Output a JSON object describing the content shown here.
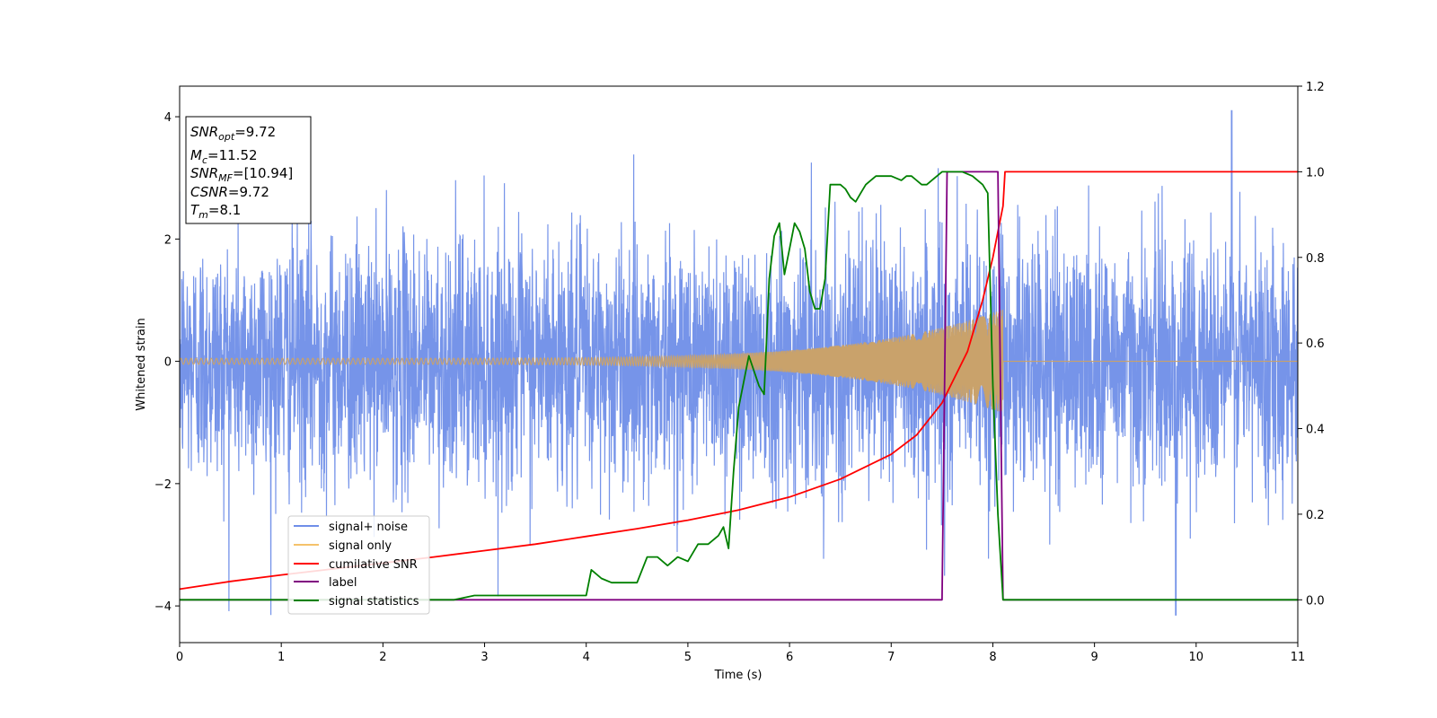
{
  "chart_data": {
    "type": "line",
    "xlabel": "Time (s)",
    "ylabel_left": "Whitened strain",
    "ylabel_right": "",
    "xlim": [
      0,
      11
    ],
    "ylim_left": [
      -4.6,
      4.5
    ],
    "ylim_right": [
      -0.1,
      1.2
    ],
    "x_ticks": [
      "0",
      "1",
      "2",
      "3",
      "4",
      "5",
      "6",
      "7",
      "8",
      "9",
      "10",
      "11"
    ],
    "y_ticks_left": [
      "−4",
      "−2",
      "0",
      "2",
      "4"
    ],
    "y_ticks_right": [
      "0.0",
      "0.2",
      "0.4",
      "0.6",
      "0.8",
      "1.0",
      "1.2"
    ],
    "info_box": {
      "snr_opt": {
        "sym": "SNR",
        "sub": "opt",
        "val": "=9.72"
      },
      "mc": {
        "sym": "M",
        "sub": "c",
        "val": "=11.52"
      },
      "snr_mf": {
        "sym": "SNR",
        "sub": "MF",
        "val": "=[10.94]"
      },
      "csnr": {
        "sym": "CSNR",
        "sub": "",
        "val": "=9.72"
      },
      "tm": {
        "sym": "T",
        "sub": "m",
        "val": "=8.1"
      }
    },
    "legend_position": "lower-left",
    "series": [
      {
        "name": "signal+ noise",
        "color": "#6f8ee8",
        "axis": "left",
        "summary": {
          "t_start": 0,
          "t_end": 11,
          "std": 1.0,
          "min": -4.15,
          "max": 4.1,
          "sample_rate_hz": 400
        }
      },
      {
        "name": "signal only",
        "color": "#f5c26b",
        "axis": "left",
        "summary": {
          "t_start": 0,
          "t_merge": 8.1,
          "t_end": 11,
          "amp_start": 0.05,
          "amp_merge": 0.85,
          "freq_start_hz": 20,
          "freq_merge_hz": 60
        }
      },
      {
        "name": "cumilative SNR",
        "color": "#ff0000",
        "axis": "right",
        "x": [
          0,
          0.5,
          1,
          1.5,
          2,
          2.5,
          3,
          3.5,
          4,
          4.5,
          5,
          5.5,
          6,
          6.5,
          7,
          7.25,
          7.5,
          7.75,
          7.9,
          8.0,
          8.05,
          8.1,
          8.12,
          9,
          10,
          11
        ],
        "y": [
          0.025,
          0.043,
          0.058,
          0.072,
          0.086,
          0.1,
          0.115,
          0.13,
          0.148,
          0.166,
          0.186,
          0.21,
          0.24,
          0.282,
          0.34,
          0.385,
          0.46,
          0.58,
          0.7,
          0.8,
          0.86,
          0.92,
          1.0,
          1.0,
          1.0,
          1.0
        ]
      },
      {
        "name": "label",
        "color": "#800080",
        "axis": "right",
        "x": [
          0,
          7.5,
          7.55,
          8.05,
          8.1,
          11
        ],
        "y": [
          0,
          0,
          1,
          1,
          0,
          0
        ]
      },
      {
        "name": "signal statistics",
        "color": "#008000",
        "axis": "right",
        "x": [
          0,
          0.5,
          1,
          1.5,
          2,
          2.5,
          2.7,
          2.9,
          3.1,
          3.3,
          3.5,
          3.7,
          3.9,
          4.0,
          4.05,
          4.15,
          4.25,
          4.35,
          4.5,
          4.6,
          4.7,
          4.8,
          4.9,
          5.0,
          5.1,
          5.2,
          5.3,
          5.35,
          5.4,
          5.45,
          5.5,
          5.6,
          5.7,
          5.75,
          5.8,
          5.85,
          5.9,
          5.95,
          6.0,
          6.05,
          6.1,
          6.15,
          6.2,
          6.25,
          6.3,
          6.35,
          6.4,
          6.5,
          6.55,
          6.6,
          6.65,
          6.7,
          6.75,
          6.8,
          6.85,
          6.9,
          7.0,
          7.1,
          7.15,
          7.2,
          7.3,
          7.35,
          7.4,
          7.45,
          7.5,
          7.55,
          7.6,
          7.7,
          7.8,
          7.9,
          7.95,
          8.0,
          8.05,
          8.1,
          8.15,
          9,
          10,
          11
        ],
        "y": [
          0,
          0,
          0,
          0,
          0,
          0,
          0.0,
          0.01,
          0.01,
          0.01,
          0.01,
          0.01,
          0.01,
          0.01,
          0.07,
          0.05,
          0.04,
          0.04,
          0.04,
          0.1,
          0.1,
          0.08,
          0.1,
          0.09,
          0.13,
          0.13,
          0.15,
          0.17,
          0.12,
          0.3,
          0.45,
          0.57,
          0.5,
          0.48,
          0.75,
          0.85,
          0.88,
          0.76,
          0.82,
          0.88,
          0.86,
          0.82,
          0.72,
          0.68,
          0.68,
          0.75,
          0.97,
          0.97,
          0.96,
          0.94,
          0.93,
          0.95,
          0.97,
          0.98,
          0.99,
          0.99,
          0.99,
          0.98,
          0.99,
          0.99,
          0.97,
          0.97,
          0.98,
          0.99,
          1.0,
          1.0,
          1.0,
          1.0,
          0.99,
          0.97,
          0.95,
          0.5,
          0.2,
          0.0,
          0,
          0,
          0,
          0
        ]
      }
    ]
  }
}
